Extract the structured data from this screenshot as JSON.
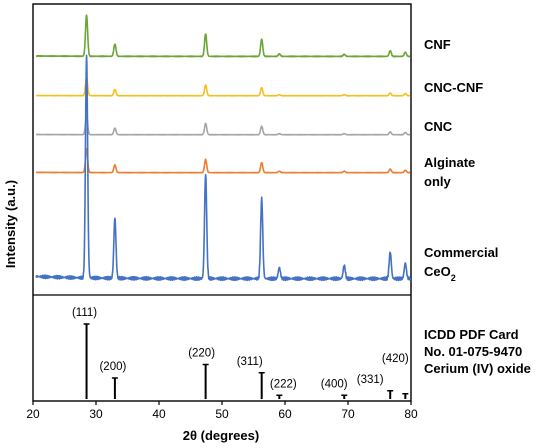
{
  "chart_data": {
    "type": "line",
    "xlabel": "2θ (degrees)",
    "ylabel": "Intensity (a.u.)",
    "xlim": [
      20,
      80
    ],
    "x_ticks": [
      "20",
      "30",
      "40",
      "50",
      "60",
      "70",
      "80"
    ],
    "grid": false,
    "legend": "series labels placed at right of each trace",
    "series": [
      {
        "name": "CNF",
        "label_lines": [
          "CNF"
        ],
        "color": "#6aa535",
        "peaks": [
          {
            "x": 28.5,
            "height": 1.0
          },
          {
            "x": 33.0,
            "height": 0.3
          },
          {
            "x": 47.4,
            "height": 0.55
          },
          {
            "x": 56.3,
            "height": 0.42
          },
          {
            "x": 59.1,
            "height": 0.06
          },
          {
            "x": 69.4,
            "height": 0.05
          },
          {
            "x": 76.7,
            "height": 0.14
          },
          {
            "x": 79.1,
            "height": 0.1
          }
        ]
      },
      {
        "name": "CNC-CNF",
        "label_lines": [
          "CNC-CNF"
        ],
        "color": "#f5c01c",
        "peaks": [
          {
            "x": 28.5,
            "height": 1.0
          },
          {
            "x": 33.0,
            "height": 0.35
          },
          {
            "x": 47.4,
            "height": 0.6
          },
          {
            "x": 56.3,
            "height": 0.45
          },
          {
            "x": 59.1,
            "height": 0.06
          },
          {
            "x": 69.4,
            "height": 0.06
          },
          {
            "x": 76.7,
            "height": 0.15
          },
          {
            "x": 79.1,
            "height": 0.12
          }
        ]
      },
      {
        "name": "CNC",
        "label_lines": [
          "CNC"
        ],
        "color": "#a5a5a5",
        "peaks": [
          {
            "x": 28.5,
            "height": 1.0
          },
          {
            "x": 33.0,
            "height": 0.35
          },
          {
            "x": 47.4,
            "height": 0.6
          },
          {
            "x": 56.3,
            "height": 0.45
          },
          {
            "x": 59.1,
            "height": 0.06
          },
          {
            "x": 69.4,
            "height": 0.06
          },
          {
            "x": 76.7,
            "height": 0.15
          },
          {
            "x": 79.1,
            "height": 0.12
          }
        ]
      },
      {
        "name": "Alginate only",
        "label_lines": [
          "Alginate",
          "only"
        ],
        "color": "#ed7d31",
        "peaks": [
          {
            "x": 28.5,
            "height": 1.0
          },
          {
            "x": 33.0,
            "height": 0.32
          },
          {
            "x": 47.4,
            "height": 0.55
          },
          {
            "x": 56.3,
            "height": 0.42
          },
          {
            "x": 59.1,
            "height": 0.06
          },
          {
            "x": 69.4,
            "height": 0.06
          },
          {
            "x": 76.7,
            "height": 0.15
          },
          {
            "x": 79.1,
            "height": 0.1
          }
        ]
      },
      {
        "name": "Commercial CeO2",
        "label_lines": [
          "Commercial",
          "CeO"
        ],
        "label_subscript": "2",
        "color": "#4472c4",
        "peaks": [
          {
            "x": 28.5,
            "height": 1.0
          },
          {
            "x": 33.0,
            "height": 0.27
          },
          {
            "x": 47.4,
            "height": 0.47
          },
          {
            "x": 56.3,
            "height": 0.36
          },
          {
            "x": 59.1,
            "height": 0.05
          },
          {
            "x": 69.4,
            "height": 0.06
          },
          {
            "x": 76.7,
            "height": 0.12
          },
          {
            "x": 79.1,
            "height": 0.07
          }
        ]
      }
    ],
    "reference_card": {
      "label_lines": [
        "ICDD PDF Card",
        "No. 01-075-9470",
        "Cerium (IV) oxide"
      ],
      "peaks": [
        {
          "x": 28.5,
          "height": 100,
          "label": "(111)"
        },
        {
          "x": 33.0,
          "height": 28,
          "label": "(200)"
        },
        {
          "x": 47.4,
          "height": 46,
          "label": "(220)"
        },
        {
          "x": 56.3,
          "height": 35,
          "label": "(311)"
        },
        {
          "x": 59.1,
          "height": 5,
          "label": "(222)"
        },
        {
          "x": 69.4,
          "height": 5,
          "label": "(400)"
        },
        {
          "x": 76.7,
          "height": 11,
          "label": "(331)"
        },
        {
          "x": 79.1,
          "height": 7,
          "label": "(420)"
        }
      ]
    }
  }
}
